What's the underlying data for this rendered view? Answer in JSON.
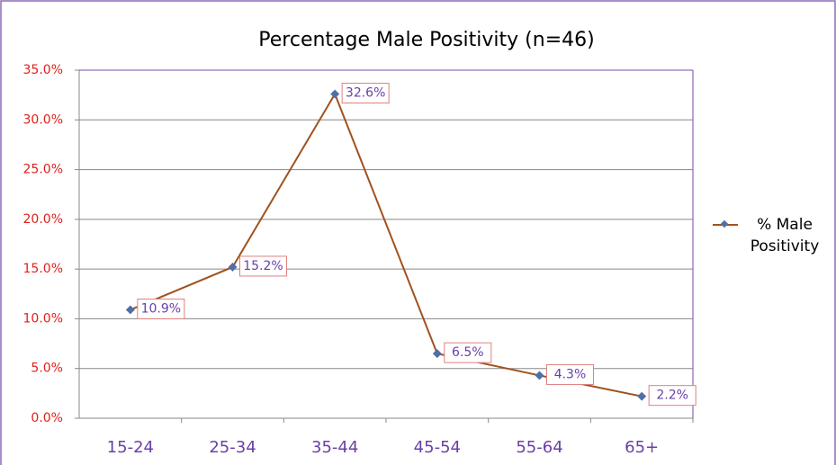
{
  "chart_data": {
    "type": "line",
    "title": "Percentage Male Positivity (n=46)",
    "categories": [
      "15-24",
      "25-34",
      "35-44",
      "45-54",
      "55-64",
      "65+"
    ],
    "series": [
      {
        "name": "% Male Positivity",
        "color": "#a0521e",
        "values": [
          10.9,
          15.2,
          32.6,
          6.5,
          4.3,
          2.2
        ],
        "value_labels": [
          "10.9%",
          "15.2%",
          "32.6%",
          "6.5%",
          "4.3%",
          "2.2%"
        ]
      }
    ],
    "ylim": [
      0,
      35
    ],
    "yticks": [
      {
        "value": 0,
        "label": "0.0%"
      },
      {
        "value": 5,
        "label": "5.0%"
      },
      {
        "value": 10,
        "label": "10.0%"
      },
      {
        "value": 15,
        "label": "15.0%"
      },
      {
        "value": 20,
        "label": "20.0%"
      },
      {
        "value": 25,
        "label": "25.0%"
      },
      {
        "value": 30,
        "label": "30.0%"
      },
      {
        "value": 35,
        "label": "35.0%"
      }
    ],
    "grid": true,
    "legend": "right"
  }
}
